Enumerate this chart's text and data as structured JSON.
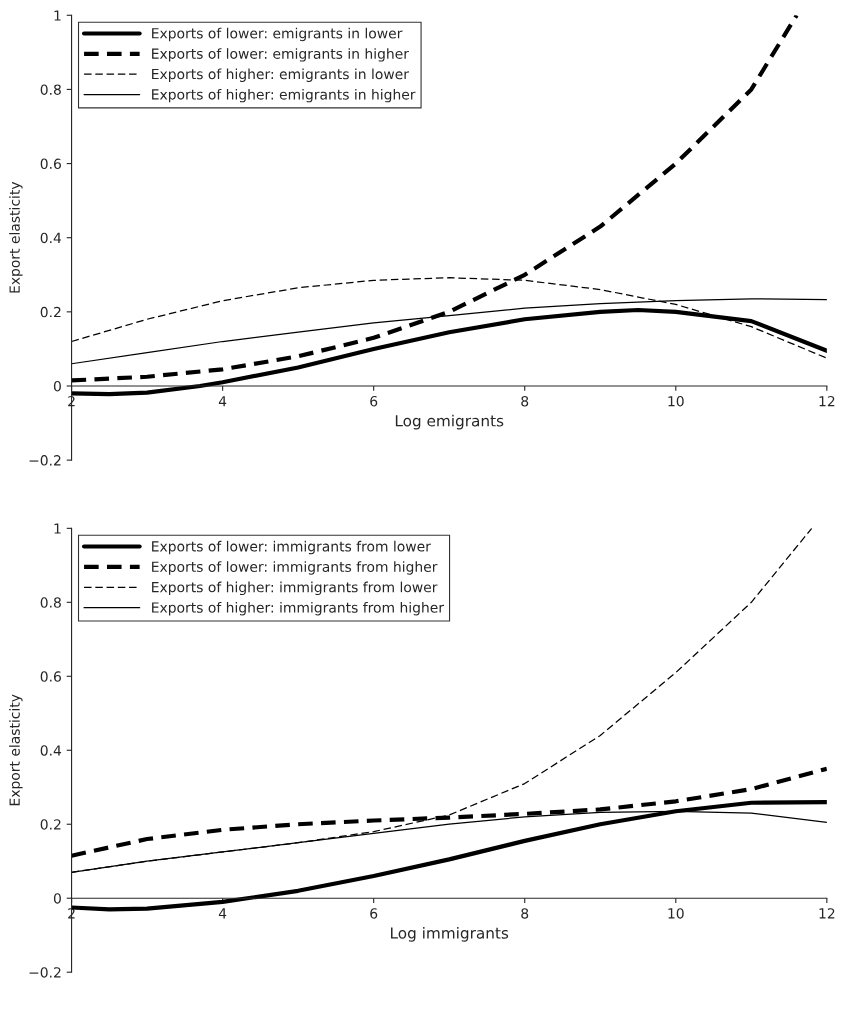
{
  "chart_data": [
    {
      "type": "line",
      "xlabel": "Log emigrants",
      "ylabel": "Export elasticity",
      "xlim": [
        2,
        12
      ],
      "ylim": [
        -0.2,
        1
      ],
      "xticks": [
        2,
        4,
        6,
        8,
        10,
        12
      ],
      "yticks": [
        {
          "value": -0.2,
          "label": "−0.2"
        },
        {
          "value": 0,
          "label": "0"
        },
        0.2,
        0.4,
        0.6,
        0.8,
        {
          "value": 1,
          "label": "1"
        }
      ],
      "grid": false,
      "legend": "top left",
      "marker": "none",
      "series": [
        {
          "name": "Exports of lower: emigrants in lower",
          "color": "#000000",
          "line_style": "solid",
          "x": [
            2,
            2.5,
            3,
            3.7,
            4,
            5,
            6,
            7,
            8,
            9,
            9.5,
            10,
            11,
            12
          ],
          "values": [
            -0.02,
            -0.022,
            -0.018,
            0,
            0.01,
            0.05,
            0.1,
            0.145,
            0.18,
            0.2,
            0.205,
            0.2,
            0.175,
            0.095
          ]
        },
        {
          "name": "Exports of lower: emigrants in higher",
          "color": "#000000",
          "line_style": "dashed",
          "x": [
            2,
            3,
            4,
            5,
            6,
            7,
            8,
            9,
            10,
            11,
            11.6
          ],
          "values": [
            0.015,
            0.025,
            0.045,
            0.08,
            0.13,
            0.2,
            0.3,
            0.43,
            0.6,
            0.8,
            1.0
          ]
        },
        {
          "name": "Exports of higher: emigrants in lower",
          "color": "#000000",
          "line_style": "dashed",
          "x": [
            2,
            3,
            4,
            5,
            6,
            7,
            8,
            9,
            10,
            11,
            12
          ],
          "values": [
            0.12,
            0.18,
            0.23,
            0.265,
            0.285,
            0.292,
            0.285,
            0.26,
            0.22,
            0.16,
            0.075
          ]
        },
        {
          "name": "Exports of higher: emigrants in higher",
          "color": "#000000",
          "line_style": "solid",
          "x": [
            2,
            3,
            4,
            5,
            6,
            7,
            8,
            9,
            10,
            11,
            12
          ],
          "values": [
            0.06,
            0.09,
            0.12,
            0.145,
            0.17,
            0.19,
            0.21,
            0.222,
            0.23,
            0.235,
            0.233
          ]
        }
      ]
    },
    {
      "type": "line",
      "xlabel": "Log immigrants",
      "ylabel": "Export elasticity",
      "xlim": [
        2,
        12
      ],
      "ylim": [
        -0.2,
        1
      ],
      "xticks": [
        2,
        4,
        6,
        8,
        10,
        12
      ],
      "yticks": [
        {
          "value": -0.2,
          "label": "−0.2"
        },
        {
          "value": 0,
          "label": "0"
        },
        0.2,
        0.4,
        0.6,
        0.8,
        {
          "value": 1,
          "label": "1"
        }
      ],
      "grid": false,
      "legend": "top left",
      "marker": "none",
      "series": [
        {
          "name": "Exports of lower: immigrants from lower",
          "color": "#000000",
          "line_style": "solid",
          "x": [
            2,
            2.5,
            3,
            4,
            5,
            6,
            7,
            8,
            9,
            10,
            11,
            12
          ],
          "values": [
            -0.025,
            -0.03,
            -0.028,
            -0.01,
            0.02,
            0.06,
            0.105,
            0.155,
            0.2,
            0.235,
            0.258,
            0.26
          ]
        },
        {
          "name": "Exports of lower: immigrants from higher",
          "color": "#000000",
          "line_style": "dashed",
          "x": [
            2,
            3,
            4,
            5,
            6,
            7,
            8,
            9,
            10,
            11,
            12
          ],
          "values": [
            0.115,
            0.16,
            0.185,
            0.2,
            0.21,
            0.218,
            0.228,
            0.24,
            0.262,
            0.295,
            0.35
          ]
        },
        {
          "name": "Exports of higher: immigrants from lower",
          "color": "#000000",
          "line_style": "dashed",
          "x": [
            2,
            3,
            4,
            5,
            6,
            7,
            8,
            9,
            10,
            11,
            11.8
          ],
          "values": [
            0.07,
            0.1,
            0.125,
            0.15,
            0.18,
            0.225,
            0.31,
            0.44,
            0.61,
            0.8,
            1.0
          ]
        },
        {
          "name": "Exports of higher: immigrants from higher",
          "color": "#000000",
          "line_style": "solid",
          "x": [
            2,
            3,
            4,
            5,
            6,
            7,
            8,
            9,
            10,
            11,
            12
          ],
          "values": [
            0.07,
            0.1,
            0.125,
            0.15,
            0.175,
            0.2,
            0.22,
            0.232,
            0.235,
            0.23,
            0.205
          ]
        }
      ]
    }
  ]
}
